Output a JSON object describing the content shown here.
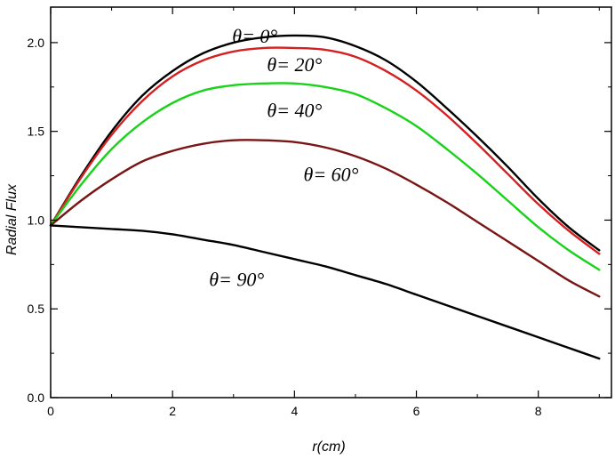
{
  "chart_data": {
    "type": "line",
    "xlabel": "r(cm)",
    "ylabel": "Radial Flux",
    "xlim": [
      0,
      9.2
    ],
    "ylim": [
      0,
      2.2
    ],
    "grid": false,
    "x_ticks": [
      0,
      2,
      4,
      6,
      8
    ],
    "x_tick_labels": [
      "0",
      "2",
      "4",
      "6",
      "8"
    ],
    "y_ticks": [
      0.0,
      0.5,
      1.0,
      1.5,
      2.0
    ],
    "y_tick_labels": [
      "0.0",
      "0.5",
      "1.0",
      "1.5",
      "2.0"
    ],
    "x": [
      0,
      0.5,
      1,
      1.5,
      2,
      2.5,
      3,
      3.5,
      4,
      4.5,
      5,
      5.5,
      6,
      6.5,
      7,
      7.5,
      8,
      8.5,
      9
    ],
    "series": [
      {
        "name": "θ= 0°",
        "color": "#000000",
        "values": [
          0.97,
          1.25,
          1.5,
          1.7,
          1.84,
          1.94,
          2.0,
          2.03,
          2.04,
          2.03,
          1.98,
          1.9,
          1.78,
          1.63,
          1.47,
          1.3,
          1.12,
          0.96,
          0.83
        ]
      },
      {
        "name": "θ= 20°",
        "color": "#d42020",
        "values": [
          0.97,
          1.24,
          1.48,
          1.67,
          1.81,
          1.9,
          1.95,
          1.97,
          1.97,
          1.96,
          1.92,
          1.84,
          1.73,
          1.59,
          1.43,
          1.26,
          1.09,
          0.94,
          0.81
        ]
      },
      {
        "name": "θ= 40°",
        "color": "#19d219",
        "values": [
          0.97,
          1.2,
          1.4,
          1.55,
          1.66,
          1.73,
          1.76,
          1.77,
          1.77,
          1.75,
          1.71,
          1.63,
          1.53,
          1.4,
          1.26,
          1.11,
          0.96,
          0.83,
          0.72
        ]
      },
      {
        "name": "θ= 60°",
        "color": "#7a1515",
        "values": [
          0.97,
          1.11,
          1.23,
          1.33,
          1.39,
          1.43,
          1.45,
          1.45,
          1.44,
          1.41,
          1.36,
          1.29,
          1.2,
          1.1,
          0.99,
          0.88,
          0.77,
          0.66,
          0.57
        ]
      },
      {
        "name": "θ= 90°",
        "color": "#000000",
        "values": [
          0.97,
          0.96,
          0.95,
          0.94,
          0.92,
          0.89,
          0.86,
          0.82,
          0.78,
          0.74,
          0.69,
          0.64,
          0.58,
          0.52,
          0.46,
          0.4,
          0.34,
          0.28,
          0.22
        ]
      }
    ]
  }
}
